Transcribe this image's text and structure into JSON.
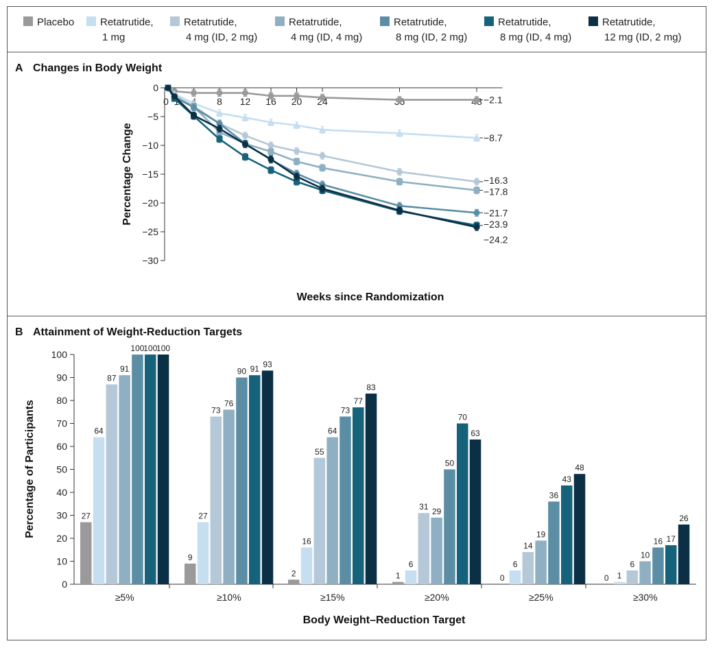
{
  "legend": [
    {
      "lines": [
        "Placebo"
      ],
      "color": "#9a9a9c"
    },
    {
      "lines": [
        "Retatrutide,",
        "1 mg"
      ],
      "color": "#c5def0"
    },
    {
      "lines": [
        "Retatrutide,",
        "4 mg (ID, 2 mg)"
      ],
      "color": "#b4c8d7"
    },
    {
      "lines": [
        "Retatrutide,",
        "4 mg (ID, 4 mg)"
      ],
      "color": "#8eb0c2"
    },
    {
      "lines": [
        "Retatrutide,",
        "8 mg (ID, 2 mg)"
      ],
      "color": "#5b8ea5"
    },
    {
      "lines": [
        "Retatrutide,",
        "8 mg (ID, 4 mg)"
      ],
      "color": "#15627a"
    },
    {
      "lines": [
        "Retatrutide,",
        "12 mg (ID, 2 mg)"
      ],
      "color": "#0b2f45"
    }
  ],
  "panel_a_title": {
    "letter": "A",
    "text": "Changes in Body Weight"
  },
  "panel_b_title": {
    "letter": "B",
    "text": "Attainment of Weight-Reduction Targets"
  },
  "chart_data": [
    {
      "type": "line",
      "title": "Changes in Body Weight",
      "xlabel": "Weeks since Randomization",
      "ylabel": "Percentage Change",
      "xlim": [
        0,
        52
      ],
      "ylim": [
        -30,
        0
      ],
      "xticks": [
        0,
        1,
        4,
        8,
        12,
        16,
        20,
        24,
        36,
        48
      ],
      "yticks": [
        0,
        -5,
        -10,
        -15,
        -20,
        -25,
        -30
      ],
      "x": [
        0,
        1,
        4,
        8,
        12,
        16,
        20,
        24,
        36,
        48
      ],
      "series": [
        {
          "values": [
            0,
            -0.6,
            -0.9,
            -0.9,
            -0.9,
            -1.4,
            -1.4,
            -1.7,
            -2.1,
            -2.1
          ],
          "color": "#9a9a9c",
          "marker": "circle",
          "end_label": "−2.1"
        },
        {
          "values": [
            0,
            -1.1,
            -2.7,
            -4.4,
            -5.2,
            -6.0,
            -6.5,
            -7.3,
            -7.9,
            -8.7
          ],
          "color": "#c5def0",
          "marker": "triangle",
          "end_label": "−8.7"
        },
        {
          "values": [
            0,
            -1.3,
            -3.2,
            -6.2,
            -8.3,
            -10.0,
            -11.0,
            -11.8,
            -14.6,
            -16.3
          ],
          "color": "#b4c8d7",
          "marker": "circle",
          "end_label": "−16.3"
        },
        {
          "values": [
            0,
            -1.6,
            -3.3,
            -7.7,
            -9.7,
            -11.1,
            -12.8,
            -13.9,
            -16.3,
            -17.8
          ],
          "color": "#8eb0c2",
          "marker": "square",
          "end_label": "−17.8"
        },
        {
          "values": [
            0,
            -1.6,
            -3.4,
            -6.2,
            -9.7,
            -12.5,
            -14.9,
            -16.8,
            -20.5,
            -21.7
          ],
          "color": "#5b8ea5",
          "marker": "circle",
          "end_label": "−21.7"
        },
        {
          "values": [
            0,
            -1.9,
            -4.9,
            -8.9,
            -12.0,
            -14.3,
            -16.3,
            -17.8,
            -21.4,
            -23.9
          ],
          "color": "#15627a",
          "marker": "square",
          "end_label": "−23.9"
        },
        {
          "values": [
            0,
            -1.5,
            -4.8,
            -7.1,
            -9.8,
            -12.4,
            -15.4,
            -17.5,
            -21.3,
            -24.2
          ],
          "color": "#0b2f45",
          "marker": "circle",
          "end_label": "−24.2"
        }
      ]
    },
    {
      "type": "bar",
      "title": "Attainment of Weight-Reduction Targets",
      "xlabel": "Body Weight–Reduction Target",
      "ylabel": "Percentage of Participants",
      "ylim": [
        0,
        100
      ],
      "yticks": [
        0,
        10,
        20,
        30,
        40,
        50,
        60,
        70,
        80,
        90,
        100
      ],
      "categories": [
        "≥5%",
        "≥10%",
        "≥15%",
        "≥20%",
        "≥25%",
        "≥30%"
      ],
      "series": [
        {
          "values": [
            27,
            9,
            2,
            1,
            0,
            0
          ],
          "color": "#9a9a9c"
        },
        {
          "values": [
            64,
            27,
            16,
            6,
            6,
            1
          ],
          "color": "#c5def0"
        },
        {
          "values": [
            87,
            73,
            55,
            31,
            14,
            6
          ],
          "color": "#b4c8d7"
        },
        {
          "values": [
            91,
            76,
            64,
            29,
            19,
            10
          ],
          "color": "#8eb0c2"
        },
        {
          "values": [
            100,
            90,
            73,
            50,
            36,
            16
          ],
          "color": "#5b8ea5"
        },
        {
          "values": [
            100,
            91,
            77,
            70,
            43,
            17
          ],
          "color": "#15627a"
        },
        {
          "values": [
            100,
            93,
            83,
            63,
            48,
            26
          ],
          "color": "#0b2f45"
        }
      ]
    }
  ]
}
